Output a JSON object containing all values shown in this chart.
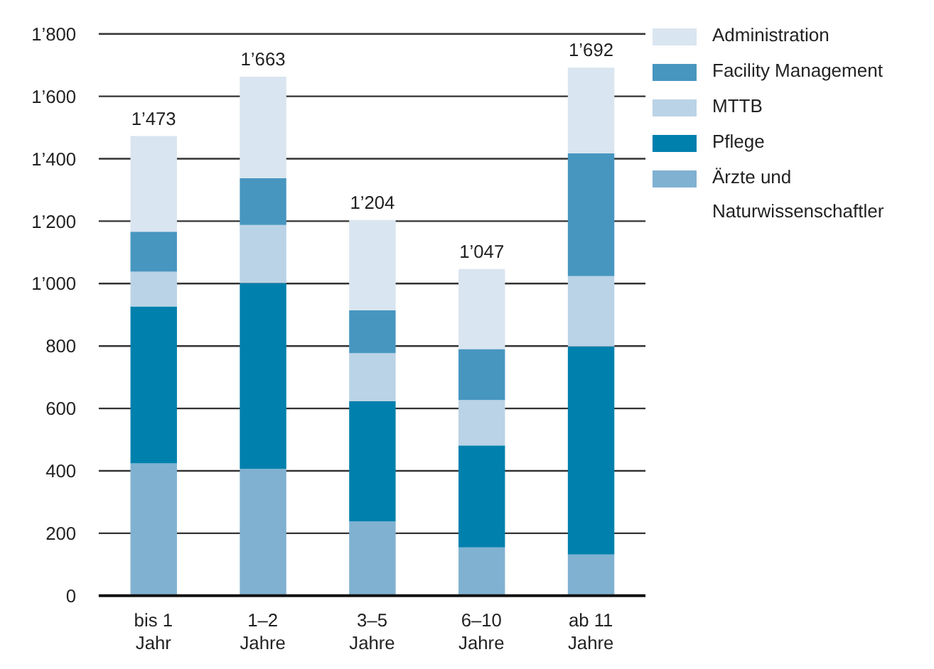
{
  "chart_data": {
    "type": "bar",
    "stacked": true,
    "categories": [
      "bis 1 Jahr",
      "1–2 Jahre",
      "3–5 Jahre",
      "6–10 Jahre",
      "ab 11 Jahre"
    ],
    "series": [
      {
        "name": "Ärzte und Naturwissenschaftler",
        "color": "#80b1d1",
        "values": [
          424,
          406,
          238,
          155,
          132
        ]
      },
      {
        "name": "Pflege",
        "color": "#0080ad",
        "values": [
          503,
          596,
          385,
          326,
          667
        ]
      },
      {
        "name": "MTTB",
        "color": "#bad3e6",
        "values": [
          111,
          186,
          154,
          146,
          225
        ]
      },
      {
        "name": "Facility Management",
        "color": "#4796c0",
        "values": [
          128,
          150,
          137,
          163,
          393
        ]
      },
      {
        "name": "Administration",
        "color": "#d9e5f0",
        "values": [
          307,
          325,
          290,
          257,
          275
        ]
      }
    ],
    "totals": [
      "1’473",
      "1’663",
      "1’204",
      "1’047",
      "1’692"
    ],
    "ylim": [
      0,
      1800
    ],
    "yticks": [
      0,
      {
        "value": 200,
        "label": "200"
      },
      400,
      600,
      800,
      {
        "value": 1000,
        "label": "1’000"
      },
      {
        "value": 1200,
        "label": "1’200"
      },
      {
        "value": 1400,
        "label": "1’400"
      },
      {
        "value": 1600,
        "label": "1’600"
      },
      {
        "value": 1800,
        "label": "1’800"
      }
    ],
    "grid": "y",
    "legend": "top right"
  }
}
